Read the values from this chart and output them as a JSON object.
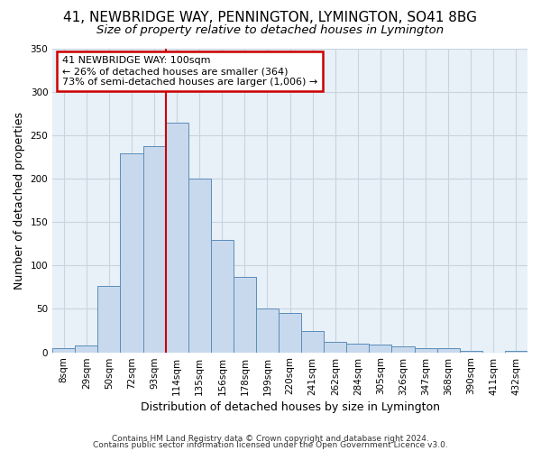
{
  "title": "41, NEWBRIDGE WAY, PENNINGTON, LYMINGTON, SO41 8BG",
  "subtitle": "Size of property relative to detached houses in Lymington",
  "xlabel": "Distribution of detached houses by size in Lymington",
  "ylabel": "Number of detached properties",
  "bar_labels": [
    "8sqm",
    "29sqm",
    "50sqm",
    "72sqm",
    "93sqm",
    "114sqm",
    "135sqm",
    "156sqm",
    "178sqm",
    "199sqm",
    "220sqm",
    "241sqm",
    "262sqm",
    "284sqm",
    "305sqm",
    "326sqm",
    "347sqm",
    "368sqm",
    "390sqm",
    "411sqm",
    "432sqm"
  ],
  "bar_values": [
    5,
    8,
    77,
    229,
    238,
    265,
    200,
    130,
    87,
    50,
    45,
    25,
    12,
    10,
    9,
    7,
    5,
    5,
    2,
    0,
    2
  ],
  "bar_color": "#c8d9ee",
  "bar_edge_color": "#5b8db8",
  "vline_color": "#cc0000",
  "vline_linewidth": 1.5,
  "annotation_box_text": "41 NEWBRIDGE WAY: 100sqm\n← 26% of detached houses are smaller (364)\n73% of semi-detached houses are larger (1,006) →",
  "annotation_box_edge_color": "#cc0000",
  "ylim": [
    0,
    350
  ],
  "yticks": [
    0,
    50,
    100,
    150,
    200,
    250,
    300,
    350
  ],
  "footer1": "Contains HM Land Registry data © Crown copyright and database right 2024.",
  "footer2": "Contains public sector information licensed under the Open Government Licence v3.0.",
  "background_color": "#ffffff",
  "plot_bg_color": "#e8f0f8",
  "grid_color": "#c8d4e0",
  "title_fontsize": 11,
  "subtitle_fontsize": 9.5,
  "axis_label_fontsize": 9,
  "tick_fontsize": 7.5,
  "footer_fontsize": 6.5,
  "annot_fontsize": 8
}
